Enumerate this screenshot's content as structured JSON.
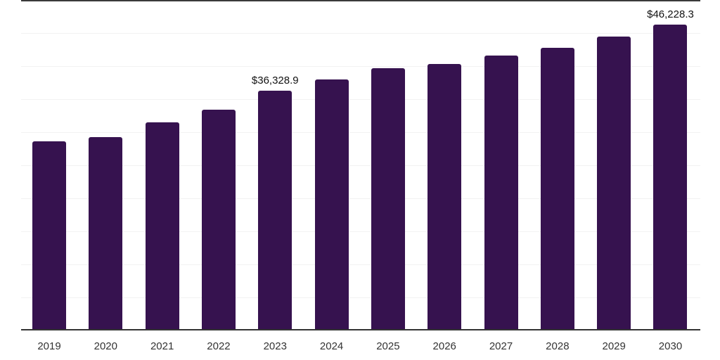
{
  "chart_data": {
    "type": "bar",
    "title": "",
    "xlabel": "",
    "ylabel": "",
    "categories": [
      "2019",
      "2020",
      "2021",
      "2022",
      "2023",
      "2024",
      "2025",
      "2026",
      "2027",
      "2028",
      "2029",
      "2030"
    ],
    "values": [
      28600,
      29300,
      31450,
      33400,
      36328.9,
      37950,
      39700,
      40300,
      41550,
      42800,
      44450,
      46228.3
    ],
    "data_labels": [
      "",
      "",
      "",
      "",
      "$36,328.9",
      "",
      "",
      "",
      "",
      "",
      "",
      "$46,228.3"
    ],
    "ylim": [
      0,
      50000
    ],
    "gridline_step": 5000,
    "grid": "horizontal-only",
    "legend": "none",
    "y_axis_labels": "hidden",
    "colors": {
      "bar": "#36124F",
      "gridline": "#f2f2f2",
      "axis_line": "#333333",
      "top_border": "#3a3a3a",
      "tick_label": "#333333",
      "value_label": "#111111",
      "background": "#ffffff"
    }
  }
}
